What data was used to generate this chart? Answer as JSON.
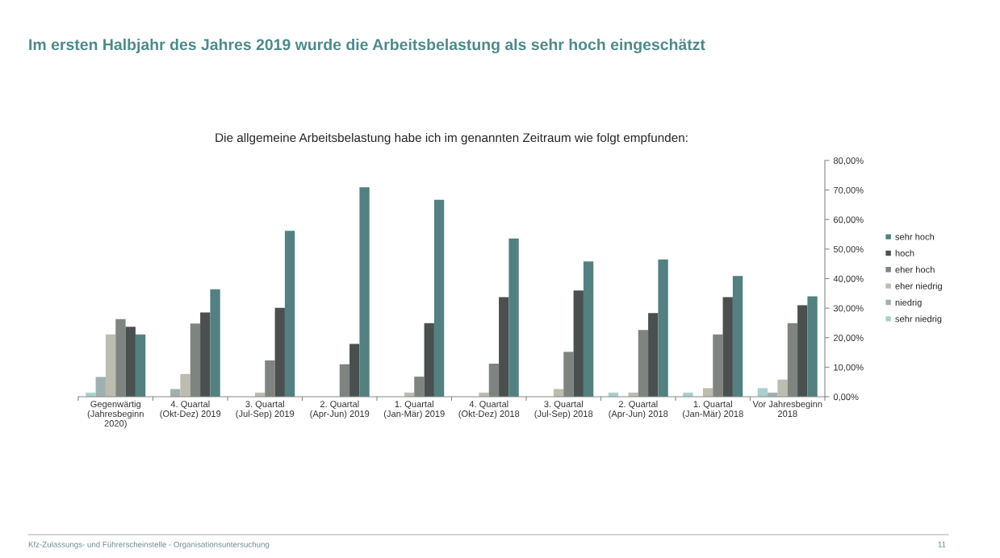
{
  "chart_data": {
    "type": "bar",
    "title": "Im ersten Halbjahr des Jahres 2019 wurde die Arbeitsbelastung als sehr hoch eingeschätzt",
    "subtitle": "Die allgemeine Arbeitsbelastung habe ich im genannten Zeitraum wie folgt empfunden:",
    "categories": [
      "Gegenwärtig (Jahresbeginn 2020)",
      "4. Quartal (Okt-Dez) 2019",
      "3. Quartal (Jul-Sep) 2019",
      "2. Quartal (Apr-Jun) 2019",
      "1. Quartal (Jan-Mär) 2019",
      "4. Quartal (Okt-Dez) 2018",
      "3. Quartal (Jul-Sep) 2018",
      "2. Quartal (Apr-Jun) 2018",
      "1. Quartal (Jan-Mär) 2018",
      "Vor Jahresbeginn 2018"
    ],
    "series": [
      {
        "name": "sehr niedrig",
        "color": "#a9cfd0",
        "values": [
          1.4,
          0,
          0,
          0,
          0,
          0,
          0,
          1.4,
          1.4,
          2.9
        ]
      },
      {
        "name": "niedrig",
        "color": "#9fb0b0",
        "values": [
          6.7,
          2.6,
          0,
          0,
          0,
          0,
          0,
          0,
          0,
          1.4
        ]
      },
      {
        "name": "eher niedrig",
        "color": "#bcbcb0",
        "values": [
          21.1,
          7.7,
          1.4,
          0,
          1.4,
          1.4,
          2.6,
          1.4,
          2.9,
          5.8
        ]
      },
      {
        "name": "eher hoch",
        "color": "#7f8480",
        "values": [
          26.3,
          24.8,
          12.3,
          11.0,
          6.8,
          11.2,
          15.2,
          22.6,
          21.1,
          24.9
        ]
      },
      {
        "name": "hoch",
        "color": "#4a4f50",
        "values": [
          23.7,
          28.5,
          30.1,
          17.9,
          24.9,
          33.7,
          36.0,
          28.3,
          33.7,
          31.0
        ]
      },
      {
        "name": "sehr hoch",
        "color": "#538080",
        "values": [
          21.1,
          36.4,
          56.2,
          70.9,
          66.7,
          53.6,
          45.8,
          46.5,
          40.9,
          34.0
        ]
      }
    ],
    "ylim": [
      0,
      80
    ],
    "yticks": [
      {
        "value": 0,
        "label": "0,00%"
      },
      {
        "value": 10,
        "label": "10,00%"
      },
      {
        "value": 20,
        "label": "20,00%"
      },
      {
        "value": 30,
        "label": "30,00%"
      },
      {
        "value": 40,
        "label": "40,00%"
      },
      {
        "value": 50,
        "label": "50,00%"
      },
      {
        "value": 60,
        "label": "60,00%"
      },
      {
        "value": 70,
        "label": "70,00%"
      },
      {
        "value": 80,
        "label": "80,00%"
      }
    ],
    "grid": false,
    "legend": "right",
    "annotations": [
      "Kfz-Zulassungs- und Führerscheinstelle - Organisationsuntersuchung",
      "11"
    ]
  }
}
